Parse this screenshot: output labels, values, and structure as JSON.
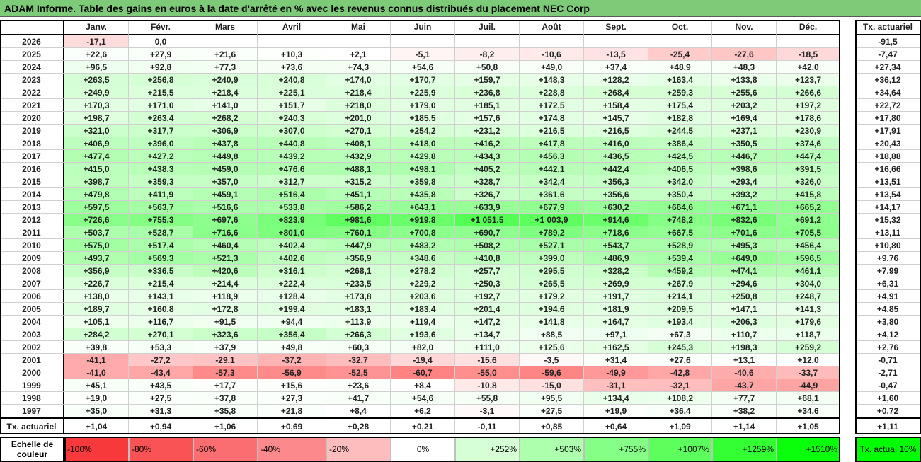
{
  "title": "ADAM Informe. Table des gains en euros à la date d'arrêté en % avec les revenus connus distribués du placement NEC Corp",
  "months": [
    "Janv.",
    "Févr.",
    "Mars",
    "Avril",
    "Mai",
    "Juin",
    "Juil.",
    "Août",
    "Sept.",
    "Oct.",
    "Nov.",
    "Déc."
  ],
  "tx_header": "Tx. actuariel",
  "rows": [
    {
      "year": "2026",
      "values": [
        "-17,1",
        "0,0",
        "",
        "",
        "",
        "",
        "",
        "",
        "",
        "",
        "",
        ""
      ],
      "tx": "-91,5"
    },
    {
      "year": "2025",
      "values": [
        "+22,6",
        "+27,9",
        "+21,6",
        "+10,3",
        "+2,1",
        "-5,1",
        "-8,2",
        "-10,6",
        "-13,5",
        "-25,4",
        "-27,6",
        "-18,5"
      ],
      "tx": "-7,47"
    },
    {
      "year": "2024",
      "values": [
        "+96,5",
        "+92,8",
        "+77,3",
        "+73,6",
        "+74,3",
        "+54,6",
        "+50,8",
        "+49,0",
        "+37,4",
        "+48,9",
        "+48,3",
        "+42,0"
      ],
      "tx": "+27,34"
    },
    {
      "year": "2023",
      "values": [
        "+263,5",
        "+256,8",
        "+240,9",
        "+240,8",
        "+174,0",
        "+170,7",
        "+159,7",
        "+148,3",
        "+128,2",
        "+163,4",
        "+133,8",
        "+123,7"
      ],
      "tx": "+36,12"
    },
    {
      "year": "2022",
      "values": [
        "+249,9",
        "+215,5",
        "+218,4",
        "+225,1",
        "+218,4",
        "+225,9",
        "+236,8",
        "+228,8",
        "+268,4",
        "+259,3",
        "+255,6",
        "+266,6"
      ],
      "tx": "+34,64"
    },
    {
      "year": "2021",
      "values": [
        "+170,3",
        "+171,0",
        "+141,0",
        "+151,7",
        "+218,0",
        "+179,0",
        "+185,1",
        "+172,5",
        "+158,4",
        "+175,4",
        "+203,2",
        "+197,2"
      ],
      "tx": "+22,72"
    },
    {
      "year": "2020",
      "values": [
        "+198,7",
        "+263,4",
        "+268,2",
        "+240,3",
        "+201,0",
        "+185,5",
        "+157,6",
        "+174,8",
        "+145,7",
        "+182,8",
        "+169,4",
        "+178,6"
      ],
      "tx": "+17,80"
    },
    {
      "year": "2019",
      "values": [
        "+321,0",
        "+317,7",
        "+306,9",
        "+307,0",
        "+270,1",
        "+254,2",
        "+231,2",
        "+216,5",
        "+216,5",
        "+244,5",
        "+237,1",
        "+230,9"
      ],
      "tx": "+17,91"
    },
    {
      "year": "2018",
      "values": [
        "+406,9",
        "+396,0",
        "+437,8",
        "+440,8",
        "+408,1",
        "+418,0",
        "+416,2",
        "+417,8",
        "+416,0",
        "+386,4",
        "+350,5",
        "+374,6"
      ],
      "tx": "+20,43"
    },
    {
      "year": "2017",
      "values": [
        "+477,4",
        "+427,2",
        "+449,8",
        "+439,2",
        "+432,9",
        "+429,8",
        "+434,3",
        "+456,3",
        "+436,5",
        "+424,5",
        "+446,7",
        "+447,4"
      ],
      "tx": "+18,88"
    },
    {
      "year": "2016",
      "values": [
        "+415,0",
        "+438,3",
        "+459,0",
        "+476,6",
        "+488,1",
        "+498,1",
        "+405,2",
        "+442,1",
        "+442,4",
        "+406,5",
        "+398,6",
        "+391,5"
      ],
      "tx": "+16,66"
    },
    {
      "year": "2015",
      "values": [
        "+398,7",
        "+359,3",
        "+357,0",
        "+312,7",
        "+315,2",
        "+359,8",
        "+328,7",
        "+342,4",
        "+356,3",
        "+342,0",
        "+293,4",
        "+326,0"
      ],
      "tx": "+13,51"
    },
    {
      "year": "2014",
      "values": [
        "+479,8",
        "+411,9",
        "+459,1",
        "+516,4",
        "+451,1",
        "+435,8",
        "+326,7",
        "+361,6",
        "+356,6",
        "+350,4",
        "+393,2",
        "+415,8"
      ],
      "tx": "+13,54"
    },
    {
      "year": "2013",
      "values": [
        "+597,5",
        "+563,7",
        "+516,6",
        "+533,8",
        "+586,2",
        "+643,1",
        "+633,9",
        "+677,9",
        "+630,2",
        "+664,6",
        "+671,1",
        "+665,2"
      ],
      "tx": "+14,17"
    },
    {
      "year": "2012",
      "values": [
        "+726,6",
        "+755,3",
        "+697,6",
        "+823,9",
        "+981,6",
        "+919,8",
        "+1 051,5",
        "+1 003,9",
        "+914,6",
        "+748,2",
        "+832,6",
        "+691,2"
      ],
      "tx": "+15,32"
    },
    {
      "year": "2011",
      "values": [
        "+503,7",
        "+528,7",
        "+716,6",
        "+801,0",
        "+760,1",
        "+700,8",
        "+690,7",
        "+789,2",
        "+718,6",
        "+667,5",
        "+701,6",
        "+705,5"
      ],
      "tx": "+13,11"
    },
    {
      "year": "2010",
      "values": [
        "+575,0",
        "+517,4",
        "+460,4",
        "+402,4",
        "+447,9",
        "+483,2",
        "+508,2",
        "+527,1",
        "+543,7",
        "+528,9",
        "+495,3",
        "+456,4"
      ],
      "tx": "+10,80"
    },
    {
      "year": "2009",
      "values": [
        "+493,7",
        "+569,3",
        "+521,3",
        "+402,6",
        "+356,9",
        "+348,6",
        "+410,8",
        "+399,0",
        "+486,9",
        "+539,4",
        "+649,0",
        "+596,5"
      ],
      "tx": "+9,76"
    },
    {
      "year": "2008",
      "values": [
        "+356,9",
        "+336,5",
        "+420,6",
        "+316,1",
        "+268,1",
        "+278,2",
        "+257,7",
        "+295,5",
        "+328,2",
        "+459,2",
        "+474,1",
        "+461,1"
      ],
      "tx": "+7,99"
    },
    {
      "year": "2007",
      "values": [
        "+226,7",
        "+215,4",
        "+214,4",
        "+222,4",
        "+233,5",
        "+229,2",
        "+250,3",
        "+265,5",
        "+269,9",
        "+267,9",
        "+294,6",
        "+304,0"
      ],
      "tx": "+6,31"
    },
    {
      "year": "2006",
      "values": [
        "+138,0",
        "+143,1",
        "+118,9",
        "+128,4",
        "+173,8",
        "+203,6",
        "+192,7",
        "+179,2",
        "+191,7",
        "+214,1",
        "+250,8",
        "+248,7"
      ],
      "tx": "+4,91"
    },
    {
      "year": "2005",
      "values": [
        "+189,7",
        "+160,8",
        "+172,8",
        "+199,4",
        "+183,1",
        "+183,4",
        "+201,4",
        "+194,6",
        "+181,9",
        "+209,5",
        "+147,1",
        "+141,3"
      ],
      "tx": "+4,85"
    },
    {
      "year": "2004",
      "values": [
        "+105,1",
        "+116,7",
        "+91,5",
        "+94,4",
        "+113,9",
        "+119,4",
        "+147,2",
        "+141,8",
        "+164,7",
        "+193,4",
        "+206,3",
        "+179,6"
      ],
      "tx": "+3,80"
    },
    {
      "year": "2003",
      "values": [
        "+284,2",
        "+270,1",
        "+323,6",
        "+356,4",
        "+266,3",
        "+193,6",
        "+134,7",
        "+88,5",
        "+97,1",
        "+67,3",
        "+110,7",
        "+118,7"
      ],
      "tx": "+4,12"
    },
    {
      "year": "2002",
      "values": [
        "+39,8",
        "+53,3",
        "+37,9",
        "+49,8",
        "+60,3",
        "+82,0",
        "+111,0",
        "+125,6",
        "+162,5",
        "+245,3",
        "+198,3",
        "+259,2"
      ],
      "tx": "+2,76"
    },
    {
      "year": "2001",
      "values": [
        "-41,1",
        "-27,2",
        "-29,1",
        "-37,2",
        "-32,7",
        "-19,4",
        "-15,6",
        "-3,5",
        "+31,4",
        "+27,6",
        "+13,1",
        "+12,0"
      ],
      "tx": "-0,71"
    },
    {
      "year": "2000",
      "values": [
        "-41,0",
        "-43,4",
        "-57,3",
        "-56,9",
        "-52,5",
        "-60,7",
        "-55,0",
        "-59,6",
        "-49,9",
        "-42,8",
        "-40,6",
        "-33,7"
      ],
      "tx": "-2,71"
    },
    {
      "year": "1999",
      "values": [
        "+45,1",
        "+43,5",
        "+17,7",
        "+15,6",
        "+23,6",
        "+8,4",
        "-10,8",
        "-15,0",
        "-31,1",
        "-32,1",
        "-43,7",
        "-44,9"
      ],
      "tx": "-0,47"
    },
    {
      "year": "1998",
      "values": [
        "+19,0",
        "+27,5",
        "+37,8",
        "+27,3",
        "+41,7",
        "+54,6",
        "+55,8",
        "+95,5",
        "+134,4",
        "+108,2",
        "+77,7",
        "+68,1"
      ],
      "tx": "+1,60"
    },
    {
      "year": "1997",
      "values": [
        "+35,0",
        "+31,3",
        "+35,8",
        "+21,8",
        "+8,4",
        "+6,2",
        "-3,1",
        "+27,5",
        "+19,9",
        "+36,4",
        "+38,2",
        "+34,6"
      ],
      "tx": "+0,72"
    }
  ],
  "summary": {
    "label": "Tx. actuariel",
    "values": [
      "+1,04",
      "+0,94",
      "+1,06",
      "+0,69",
      "+0,28",
      "+0,21",
      "-0,11",
      "+0,85",
      "+0,64",
      "+1,09",
      "+1,14",
      "+1,05"
    ],
    "tx": "+1,11"
  },
  "legend": {
    "label": "Echelle de couleur",
    "steps": [
      {
        "text": "-100%",
        "color": "#f8393c"
      },
      {
        "text": "-80%",
        "color": "#f95356"
      },
      {
        "text": "-60%",
        "color": "#fa6d70"
      },
      {
        "text": "-40%",
        "color": "#fc898b"
      },
      {
        "text": "-20%",
        "color": "#fdbcbd"
      },
      {
        "text": "0%",
        "color": "#ffffff"
      },
      {
        "text": "+252%",
        "color": "#d6ffd6"
      },
      {
        "text": "+503%",
        "color": "#adffad"
      },
      {
        "text": "+755%",
        "color": "#85ff85"
      },
      {
        "text": "+1007%",
        "color": "#5cff5c"
      },
      {
        "text": "+1259%",
        "color": "#33ff33"
      },
      {
        "text": "+1510%",
        "color": "#0aff0a"
      }
    ],
    "tx_label": "Tx. actua. 10%",
    "tx_color": "#00ff00"
  }
}
